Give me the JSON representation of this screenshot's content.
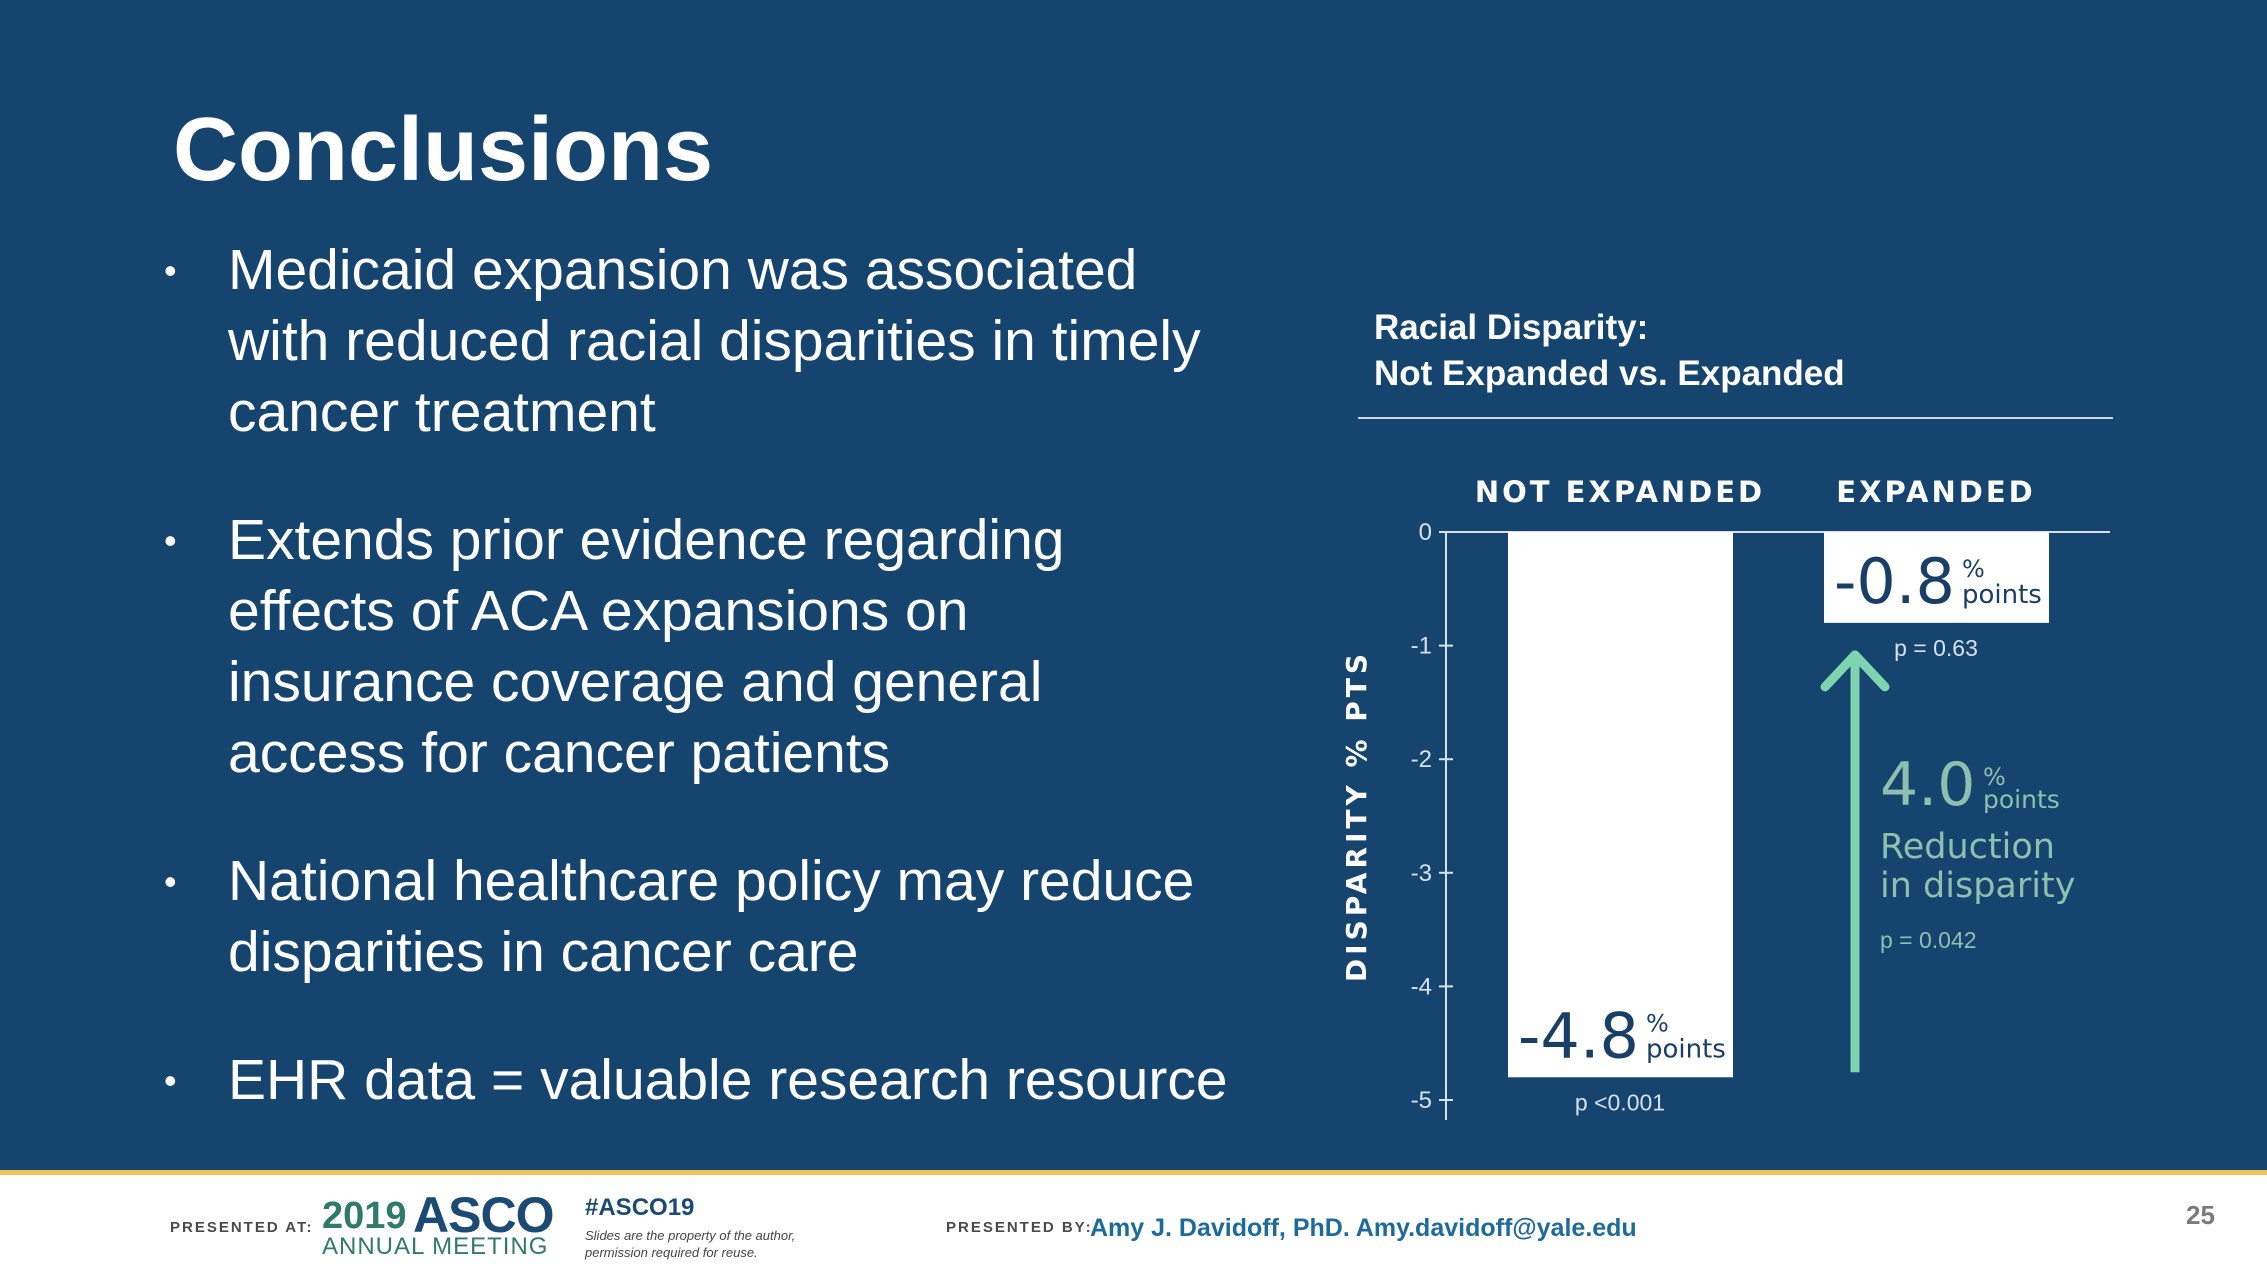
{
  "slide": {
    "title": "Conclusions",
    "bullets": [
      {
        "lines": [
          "Medicaid expansion was associated",
          "with reduced racial disparities in timely",
          "cancer treatment"
        ]
      },
      {
        "lines": [
          "Extends prior evidence regarding",
          "effects of ACA expansions on",
          "insurance coverage and general",
          "access for cancer patients"
        ]
      },
      {
        "lines": [
          "National healthcare policy may reduce",
          "disparities in cancer care"
        ]
      },
      {
        "lines": [
          "EHR data = valuable research resource"
        ]
      }
    ]
  },
  "chart_header": {
    "line1": "Racial Disparity:",
    "line2": "Not Expanded vs. Expanded"
  },
  "chart_data": {
    "type": "bar",
    "title": "Racial Disparity: Not Expanded vs. Expanded",
    "ylabel": "DISPARITY % PTS",
    "xlabel": "",
    "ylim": [
      -5,
      0
    ],
    "yticks": [
      0,
      -1,
      -2,
      -3,
      -4,
      -5
    ],
    "ytick_labels": [
      "0",
      "-1",
      "-2",
      "-3",
      "-4",
      "-5"
    ],
    "categories": [
      "NOT EXPANDED",
      "EXPANDED"
    ],
    "values": [
      -4.8,
      -0.8
    ],
    "value_labels": [
      "-4.8",
      "-0.8"
    ],
    "unit_top": "%",
    "unit_bottom": "points",
    "p_values": [
      "p <0.001",
      "p = 0.63"
    ],
    "annotation": {
      "value": "4.0",
      "unit_top": "%",
      "unit_bottom": "points",
      "text_line1": "Reduction",
      "text_line2": "in disparity",
      "p_value": "p = 0.042",
      "arrow_from": -4.8,
      "arrow_to": -0.8
    },
    "colors": {
      "bar_fill": "#ffffff",
      "value_text": "#1a3f66",
      "axis": "#d8e0ea",
      "arrow": "#7ed4b0",
      "annotation_text": "#8fbfae"
    }
  },
  "footer": {
    "presented_at_label": "PRESENTED AT:",
    "asco_year": "2019",
    "asco_name": "ASCO",
    "asco_meeting": "ANNUAL MEETING",
    "hashtag": "#ASCO19",
    "disclaimer": "Slides are the property of the author, permission required for reuse.",
    "presented_by_label": "PRESENTED BY:",
    "presenter": "Amy J. Davidoff, PhD. Amy.davidoff@yale.edu",
    "page_number": "25"
  },
  "colors": {
    "slide_bg": "#15456f",
    "accent_gold": "#e9c55a",
    "footer_bg": "#ffffff"
  }
}
